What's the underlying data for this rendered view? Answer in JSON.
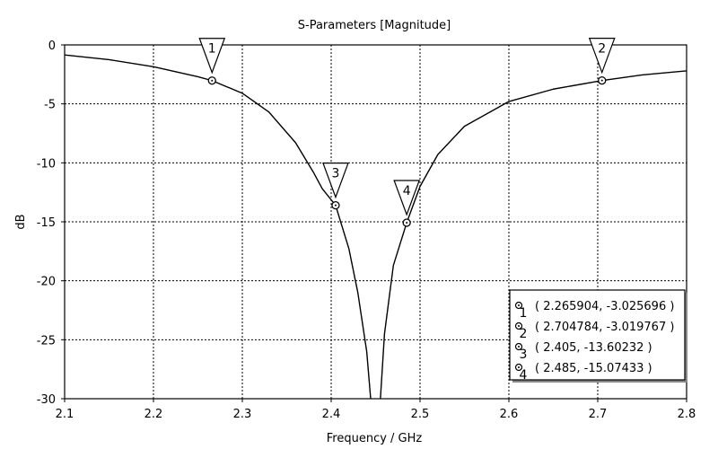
{
  "chart_data": {
    "type": "line",
    "title": "S-Parameters [Magnitude]",
    "xlabel": "Frequency / GHz",
    "ylabel": "dB",
    "xlim": [
      2.1,
      2.8
    ],
    "ylim": [
      -30,
      0
    ],
    "x_ticks": [
      "2.1",
      "2.2",
      "2.3",
      "2.4",
      "2.5",
      "2.6",
      "2.7",
      "2.8"
    ],
    "y_ticks": [
      "0",
      "-5",
      "-10",
      "-15",
      "-20",
      "-25",
      "-30"
    ],
    "grid": true,
    "line_color": "#000000",
    "series": [
      {
        "x": [
          2.1,
          2.15,
          2.2,
          2.25,
          2.265904,
          2.3,
          2.33,
          2.36,
          2.38,
          2.39,
          2.405,
          2.42,
          2.43,
          2.44,
          2.445,
          2.448,
          2.452,
          2.455,
          2.46,
          2.47,
          2.485,
          2.5,
          2.52,
          2.55,
          2.6,
          2.65,
          2.704784,
          2.75,
          2.8
        ],
        "y": [
          -0.85,
          -1.25,
          -1.85,
          -2.7,
          -3.025696,
          -4.1,
          -5.7,
          -8.3,
          -10.8,
          -12.2,
          -13.60232,
          -17.3,
          -21.0,
          -26.0,
          -30.5,
          -33.0,
          -33.0,
          -30.5,
          -24.5,
          -18.7,
          -15.07433,
          -12.0,
          -9.3,
          -6.9,
          -4.8,
          -3.75,
          -3.019767,
          -2.55,
          -2.2
        ]
      }
    ],
    "markers": [
      {
        "label": "1",
        "x": 2.265904,
        "y": -3.025696,
        "legend_text": "( 2.265904, -3.025696 )"
      },
      {
        "label": "2",
        "x": 2.704784,
        "y": -3.019767,
        "legend_text": "( 2.704784, -3.019767 )"
      },
      {
        "label": "3",
        "x": 2.405,
        "y": -13.60232,
        "legend_text": "( 2.405, -13.60232 )"
      },
      {
        "label": "4",
        "x": 2.485,
        "y": -15.07433,
        "legend_text": "( 2.485, -15.07433 )"
      }
    ],
    "legend_position": "bottom-right"
  }
}
